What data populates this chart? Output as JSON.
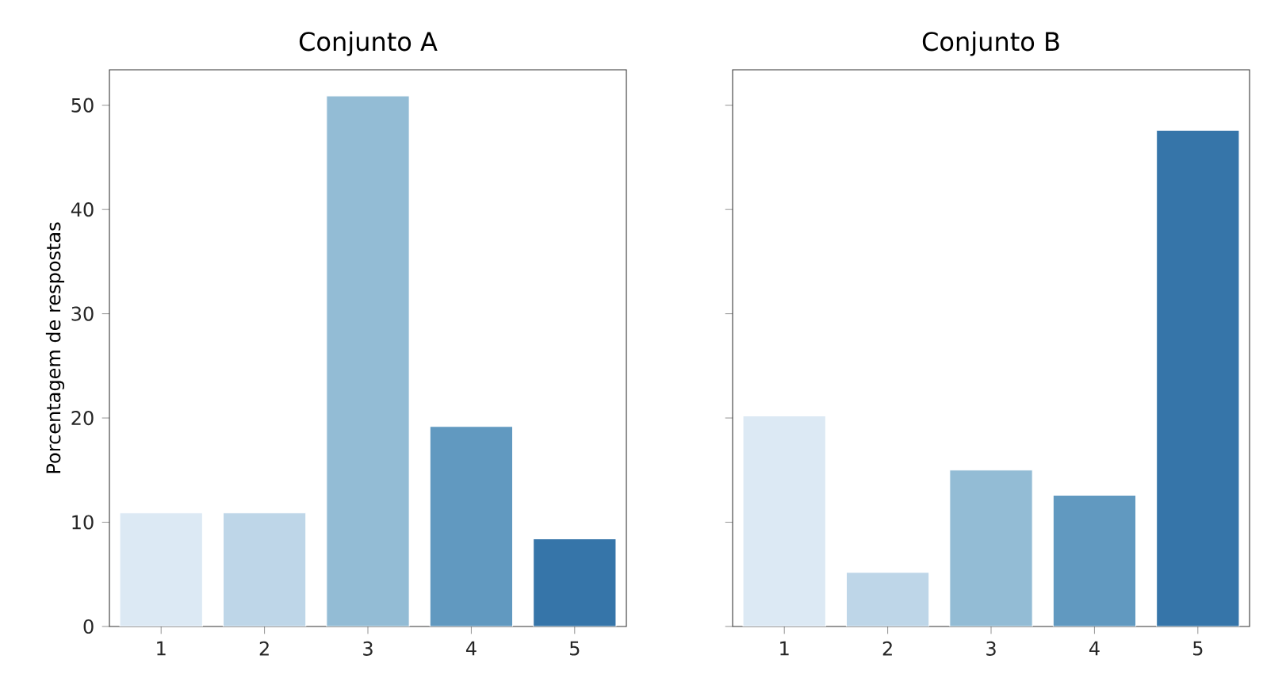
{
  "chart_data": [
    {
      "type": "bar",
      "title": "Conjunto A",
      "ylabel": "Porcentagem de respostas",
      "categories": [
        "1",
        "2",
        "3",
        "4",
        "5"
      ],
      "values": [
        10.9,
        10.9,
        50.9,
        19.2,
        8.4
      ],
      "colors": [
        "#dce9f4",
        "#bed6e8",
        "#93bcd5",
        "#6199c0",
        "#3675a9"
      ],
      "ylim": [
        0,
        53.4
      ],
      "yticks": [
        0,
        10,
        20,
        30,
        40,
        50
      ]
    },
    {
      "type": "bar",
      "title": "Conjunto B",
      "categories": [
        "1",
        "2",
        "3",
        "4",
        "5"
      ],
      "values": [
        20.2,
        5.2,
        15.0,
        12.6,
        47.6
      ],
      "colors": [
        "#dce9f4",
        "#bed6e8",
        "#93bcd5",
        "#6199c0",
        "#3675a9"
      ],
      "ylim": [
        0,
        53.4
      ],
      "yticks": [
        0,
        10,
        20,
        30,
        40,
        50
      ],
      "tick_labels": "x"
    }
  ]
}
